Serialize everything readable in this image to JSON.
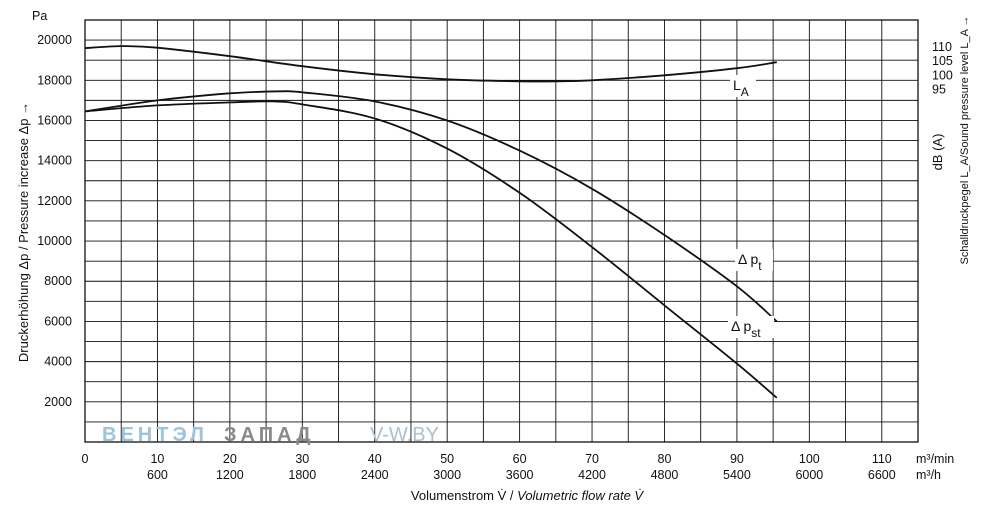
{
  "chart_data": {
    "type": "line",
    "x_unit_primary": "m³/min",
    "x_unit_secondary": "m³/h",
    "x_ticks_primary": [
      "0",
      "10",
      "20",
      "30",
      "40",
      "50",
      "60",
      "70",
      "80",
      "90",
      "100",
      "110"
    ],
    "x_ticks_secondary": [
      "600",
      "1200",
      "1800",
      "2400",
      "3000",
      "3600",
      "4200",
      "4800",
      "5400",
      "6000",
      "6600"
    ],
    "xlim": [
      0,
      115
    ],
    "y_unit": "Pa",
    "y_ticks": [
      "2000",
      "4000",
      "6000",
      "8000",
      "10000",
      "12000",
      "14000",
      "16000",
      "18000",
      "20000"
    ],
    "ylim": [
      0,
      21000
    ],
    "y2_unit": "dB (A)",
    "y2_ticks": [
      "95",
      "100",
      "105",
      "110"
    ],
    "xlabel_plain": "Volumenstrom V̇ / ",
    "xlabel_italic": "Volumetric flow rate V̇",
    "ylabel": "Druckerhöhung Δp / Pressure increase  Δp →",
    "y2label": "Schalldruckpegel L_A/Sound pressure level L_A →",
    "grid": true,
    "series": [
      {
        "name": "L_A",
        "label_main": "L",
        "label_sub": "A",
        "color": "#111111",
        "x": [
          0,
          5,
          10,
          20,
          30,
          40,
          50,
          60,
          65,
          70,
          80,
          90,
          95.5
        ],
        "y": [
          19600,
          19700,
          19620,
          19200,
          18700,
          18300,
          18050,
          17950,
          17950,
          18000,
          18250,
          18600,
          18900
        ]
      },
      {
        "name": "Δ pt",
        "label_main": "Δ p",
        "label_sub": "t",
        "color": "#111111",
        "x": [
          0,
          10,
          20,
          27,
          30,
          40,
          50,
          60,
          70,
          80,
          90,
          95.5
        ],
        "y": [
          16450,
          17000,
          17350,
          17450,
          17400,
          16950,
          16000,
          14500,
          12600,
          10300,
          7750,
          6000
        ]
      },
      {
        "name": "Δ pst",
        "label_main": "Δ p",
        "label_sub": "st",
        "color": "#111111",
        "x": [
          0,
          10,
          20,
          26,
          30,
          40,
          50,
          60,
          70,
          80,
          90,
          95.5
        ],
        "y": [
          16450,
          16750,
          16900,
          16950,
          16800,
          16100,
          14600,
          12400,
          9700,
          6800,
          3900,
          2200
        ]
      }
    ]
  },
  "watermark": {
    "part1": "ВЕНТЭЛ",
    "part2": "ЗАПАД",
    "part3": "V-W.BY",
    "color1": "#9ec3dc",
    "color2": "#8a8a8a",
    "color3": "#aebfd0"
  }
}
